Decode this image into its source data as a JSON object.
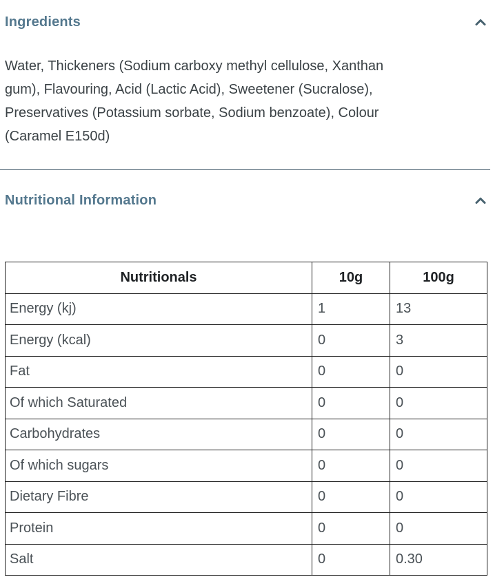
{
  "colors": {
    "heading": "#54788e",
    "chevron": "#47626f",
    "divider": "#5d7280",
    "body_text": "#3b4246",
    "table_text": "#4a5156",
    "table_header_text": "#1e2124",
    "table_border": "#1f1f1f",
    "background": "#ffffff"
  },
  "ingredients": {
    "title": "Ingredients",
    "chevron_icon": "chevron-up",
    "body": "Water, Thickeners (Sodium carboxy methyl cellulose, Xanthan gum), Flavouring, Acid (Lactic Acid), Sweetener (Sucralose), Preservatives (Potassium sorbate, Sodium benzoate), Colour (Caramel E150d)"
  },
  "nutrition": {
    "title": "Nutritional Information",
    "chevron_icon": "chevron-up",
    "table": {
      "columns": [
        "Nutritionals",
        "10g",
        "100g"
      ],
      "rows": [
        [
          "Energy (kj)",
          "1",
          "13"
        ],
        [
          "Energy (kcal)",
          "0",
          "3"
        ],
        [
          "Fat",
          "0",
          "0"
        ],
        [
          "Of which Saturated",
          "0",
          "0"
        ],
        [
          "Carbohydrates",
          "0",
          "0"
        ],
        [
          "Of which sugars",
          "0",
          "0"
        ],
        [
          "Dietary Fibre",
          "0",
          "0"
        ],
        [
          "Protein",
          "0",
          "0"
        ],
        [
          "Salt",
          "0",
          "0.30"
        ]
      ]
    }
  }
}
